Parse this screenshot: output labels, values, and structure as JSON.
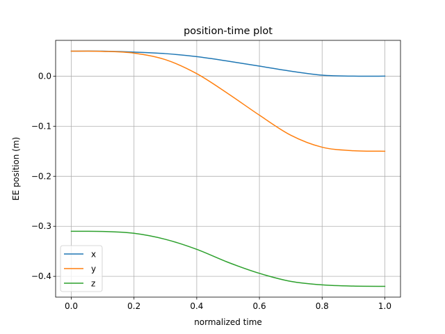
{
  "chart_data": {
    "type": "line",
    "title": "position-time plot",
    "xlabel": "normalized time",
    "ylabel": "EE position (m)",
    "xlim": [
      -0.05,
      1.05
    ],
    "ylim": [
      -0.4415,
      0.0715
    ],
    "xticks": [
      0.0,
      0.2,
      0.4,
      0.6,
      0.8,
      1.0
    ],
    "xtick_labels": [
      "0.0",
      "0.2",
      "0.4",
      "0.6",
      "0.8",
      "1.0"
    ],
    "yticks": [
      0.0,
      -0.1,
      -0.2,
      -0.3,
      -0.4
    ],
    "ytick_labels": [
      "0.0",
      "−0.1",
      "−0.2",
      "−0.3",
      "−0.4"
    ],
    "grid": true,
    "legend_position": "lower-left",
    "x": [
      0.0,
      0.1,
      0.2,
      0.3,
      0.4,
      0.5,
      0.6,
      0.7,
      0.8,
      0.9,
      1.0
    ],
    "series": [
      {
        "name": "x",
        "color": "#1f77b4",
        "values": [
          0.05,
          0.0499,
          0.048,
          0.045,
          0.039,
          0.03,
          0.02,
          0.01,
          0.002,
          0.0,
          0.0
        ]
      },
      {
        "name": "y",
        "color": "#ff7f0e",
        "values": [
          0.05,
          0.0495,
          0.046,
          0.033,
          0.005,
          -0.035,
          -0.078,
          -0.118,
          -0.142,
          -0.149,
          -0.15
        ]
      },
      {
        "name": "z",
        "color": "#2ca02c",
        "values": [
          -0.31,
          -0.3103,
          -0.314,
          -0.326,
          -0.346,
          -0.372,
          -0.394,
          -0.41,
          -0.417,
          -0.4195,
          -0.42
        ]
      }
    ]
  }
}
